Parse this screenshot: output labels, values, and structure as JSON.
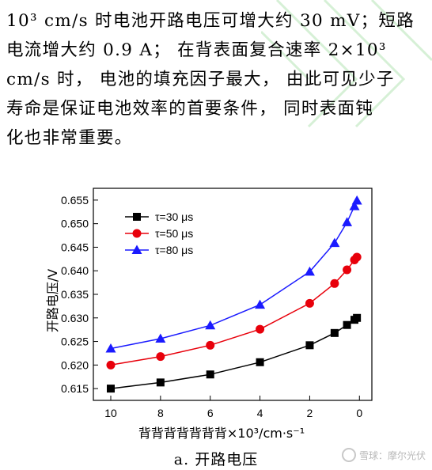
{
  "paragraph": {
    "lines": [
      "10³ cm/s 时电池开路电压可增大约 30 mV；短路",
      "电流增大约 0.9 A； 在背表面复合速率 2×10³",
      "cm/s 时， 电池的填充因子最大， 由此可见少子",
      "寿命是保证电池效率的首要条件， 同时表面钝",
      "化也非常重要。"
    ]
  },
  "chart_data": {
    "type": "scatter",
    "xlabel": "背背背背背背背×10³/cm·s⁻¹",
    "ylabel": "开路电压/V",
    "xlim": [
      10.7,
      -0.5
    ],
    "ylim": [
      0.6125,
      0.6575
    ],
    "x_ticks": [
      "10",
      "8",
      "6",
      "4",
      "2",
      "0"
    ],
    "x_tick_values": [
      10,
      8,
      6,
      4,
      2,
      0
    ],
    "y_ticks": [
      "0.615",
      "0.620",
      "0.625",
      "0.630",
      "0.635",
      "0.640",
      "0.645",
      "0.650",
      "0.655"
    ],
    "y_tick_values": [
      0.615,
      0.62,
      0.625,
      0.63,
      0.635,
      0.64,
      0.645,
      0.65,
      0.655
    ],
    "legend_position": "top-left",
    "series": [
      {
        "name": "τ=30 μs",
        "marker": "square",
        "color": "#000000",
        "x": [
          10,
          8,
          6,
          4,
          2,
          1,
          0.5,
          0.2,
          0.1
        ],
        "y": [
          0.615,
          0.6163,
          0.618,
          0.6206,
          0.6242,
          0.6268,
          0.6285,
          0.6296,
          0.63
        ]
      },
      {
        "name": "τ=50 μs",
        "marker": "circle",
        "color": "#e8000b",
        "x": [
          10,
          8,
          6,
          4,
          2,
          1,
          0.5,
          0.2,
          0.1
        ],
        "y": [
          0.62,
          0.6218,
          0.6242,
          0.6276,
          0.6331,
          0.6373,
          0.6402,
          0.6423,
          0.6429
        ]
      },
      {
        "name": "τ=80 μs",
        "marker": "triangle",
        "color": "#1a1aff",
        "x": [
          10,
          8,
          6,
          4,
          2,
          1,
          0.5,
          0.2,
          0.1
        ],
        "y": [
          0.6235,
          0.6256,
          0.6284,
          0.6328,
          0.6398,
          0.6459,
          0.6503,
          0.6537,
          0.6549
        ]
      }
    ]
  },
  "caption": "a. 开路电压",
  "watermark": "雪球：摩尔光伏"
}
